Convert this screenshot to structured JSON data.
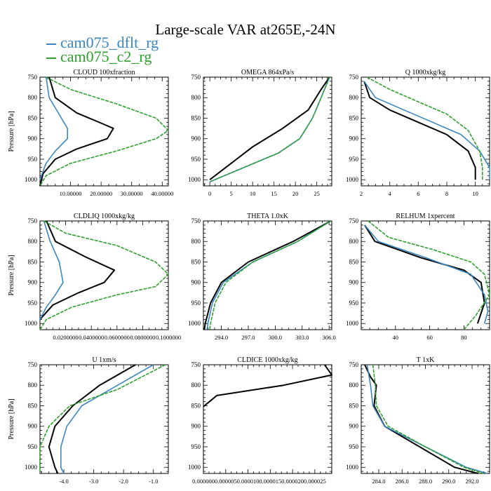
{
  "title": "Large-scale VAR at265E,-24N",
  "legend": [
    {
      "label": "cam075_dflt_rg",
      "color": "#3a86c2"
    },
    {
      "label": "cam075_c2_rg",
      "color": "#2ea12e"
    }
  ],
  "colors": {
    "black": "#000000",
    "blue": "#3a86c2",
    "green": "#2ea12e"
  },
  "chart_data": [
    {
      "type": "line",
      "title": "CLOUD  100xfraction",
      "ylabel": "Pressure [hPa]",
      "xlim": [
        0,
        42
      ],
      "ylim": [
        750,
        1015
      ],
      "xticks": [
        10,
        20,
        30,
        40
      ],
      "xtick_labels": [
        "10.00000",
        "20.00000",
        "30.00000",
        "40.00000"
      ],
      "yticks": [
        750,
        800,
        850,
        900,
        950,
        1000
      ],
      "series": [
        {
          "color": "black",
          "points": [
            [
              3,
              750
            ],
            [
              5,
              800
            ],
            [
              12,
              837
            ],
            [
              20,
              862
            ],
            [
              24,
              875
            ],
            [
              22,
              900
            ],
            [
              12,
              925
            ],
            [
              5,
              950
            ],
            [
              1,
              985
            ],
            [
              0,
              1015
            ]
          ]
        },
        {
          "color": "blue",
          "points": [
            [
              2,
              750
            ],
            [
              3,
              800
            ],
            [
              6,
              837
            ],
            [
              9,
              875
            ],
            [
              9,
              900
            ],
            [
              5,
              930
            ],
            [
              2,
              960
            ],
            [
              0,
              1000
            ]
          ]
        },
        {
          "color": "green",
          "dashed": true,
          "points": [
            [
              2,
              750
            ],
            [
              10,
              780
            ],
            [
              25,
              815
            ],
            [
              38,
              850
            ],
            [
              42,
              880
            ],
            [
              38,
              900
            ],
            [
              25,
              930
            ],
            [
              10,
              960
            ],
            [
              2,
              990
            ],
            [
              0,
              1015
            ]
          ]
        }
      ]
    },
    {
      "type": "line",
      "title": "OMEGA  864xPa/s",
      "xlim": [
        -1.5,
        28.5
      ],
      "ylim": [
        750,
        1015
      ],
      "xticks": [
        0,
        5,
        10,
        15,
        20,
        25
      ],
      "xtick_labels": [
        "0",
        "5",
        "10",
        "15",
        "20",
        "25"
      ],
      "yticks": [
        750,
        800,
        850,
        900,
        950,
        1000
      ],
      "series": [
        {
          "color": "black",
          "points": [
            [
              28,
              750
            ],
            [
              26,
              780
            ],
            [
              23,
              830
            ],
            [
              17,
              875
            ],
            [
              10,
              920
            ],
            [
              5,
              960
            ],
            [
              0,
              1000
            ]
          ]
        },
        {
          "color": "blue",
          "points": [
            [
              28,
              750
            ],
            [
              26,
              800
            ],
            [
              24,
              850
            ],
            [
              21,
              900
            ],
            [
              16,
              935
            ],
            [
              8,
              970
            ],
            [
              0,
              1005
            ]
          ]
        },
        {
          "color": "green",
          "dashed": true,
          "points": [
            [
              28,
              750
            ],
            [
              26,
              800
            ],
            [
              24,
              850
            ],
            [
              21,
              900
            ],
            [
              16,
              935
            ],
            [
              8,
              970
            ],
            [
              0,
              1005
            ]
          ]
        }
      ]
    },
    {
      "type": "line",
      "title": "Q  1000xkg/kg",
      "xlim": [
        2,
        11
      ],
      "ylim": [
        750,
        1015
      ],
      "xticks": [
        2,
        4,
        6,
        8,
        10
      ],
      "xtick_labels": [
        "2",
        "4",
        "6",
        "8",
        "10"
      ],
      "yticks": [
        750,
        800,
        850,
        900,
        950,
        1000
      ],
      "series": [
        {
          "color": "black",
          "points": [
            [
              2.2,
              760
            ],
            [
              2.6,
              800
            ],
            [
              4,
              830
            ],
            [
              6,
              860
            ],
            [
              8,
              890
            ],
            [
              9.5,
              930
            ],
            [
              10,
              970
            ],
            [
              10,
              1000
            ]
          ]
        },
        {
          "color": "blue",
          "points": [
            [
              2.2,
              760
            ],
            [
              3,
              800
            ],
            [
              5,
              830
            ],
            [
              7,
              860
            ],
            [
              9,
              890
            ],
            [
              10.3,
              930
            ],
            [
              11,
              970
            ],
            [
              11,
              1000
            ]
          ]
        },
        {
          "color": "green",
          "dashed": true,
          "points": [
            [
              2.4,
              750
            ],
            [
              4,
              780
            ],
            [
              6,
              810
            ],
            [
              8,
              840
            ],
            [
              9.5,
              880
            ],
            [
              10.3,
              930
            ],
            [
              10.5,
              970
            ],
            [
              10.5,
              1000
            ]
          ]
        }
      ]
    },
    {
      "type": "line",
      "title": "CLDLIQ  1000xkg/kg",
      "ylabel": "Pressure [hPa]",
      "xlim": [
        0,
        0.1
      ],
      "ylim": [
        750,
        1015
      ],
      "xticks": [
        0.02,
        0.04,
        0.06,
        0.08,
        0.1
      ],
      "xtick_labels": [
        "0.0200000",
        "0.0400000",
        "0.0600000",
        "0.0800000",
        "0.1000000"
      ],
      "yticks": [
        750,
        800,
        850,
        900,
        950,
        1000
      ],
      "series": [
        {
          "color": "black",
          "points": [
            [
              0.005,
              750
            ],
            [
              0.012,
              800
            ],
            [
              0.035,
              837
            ],
            [
              0.058,
              870
            ],
            [
              0.05,
              900
            ],
            [
              0.03,
              925
            ],
            [
              0.01,
              955
            ],
            [
              0,
              990
            ]
          ]
        },
        {
          "color": "blue",
          "points": [
            [
              0.003,
              750
            ],
            [
              0.008,
              800
            ],
            [
              0.015,
              850
            ],
            [
              0.018,
              900
            ],
            [
              0.012,
              930
            ],
            [
              0.005,
              960
            ],
            [
              0,
              990
            ]
          ]
        },
        {
          "color": "green",
          "dashed": true,
          "points": [
            [
              0.003,
              750
            ],
            [
              0.02,
              780
            ],
            [
              0.06,
              810
            ],
            [
              0.09,
              850
            ],
            [
              0.1,
              880
            ],
            [
              0.09,
              910
            ],
            [
              0.06,
              930
            ],
            [
              0.025,
              960
            ],
            [
              0.005,
              990
            ],
            [
              0,
              1015
            ]
          ]
        }
      ]
    },
    {
      "type": "line",
      "title": "THETA  1.0xK",
      "xlim": [
        292,
        306.3
      ],
      "ylim": [
        750,
        1015
      ],
      "xticks": [
        294,
        297,
        300,
        303,
        306
      ],
      "xtick_labels": [
        "294.0",
        "297.0",
        "300.0",
        "303.0",
        "306.0"
      ],
      "yticks": [
        750,
        800,
        850,
        900,
        950,
        1000
      ],
      "series": [
        {
          "color": "black",
          "points": [
            [
              306.2,
              750
            ],
            [
              302,
              800
            ],
            [
              297,
              850
            ],
            [
              294,
              900
            ],
            [
              292.8,
              950
            ],
            [
              292.2,
              1000
            ],
            [
              292.1,
              1015
            ]
          ]
        },
        {
          "color": "blue",
          "points": [
            [
              306.2,
              750
            ],
            [
              302.5,
              800
            ],
            [
              297.5,
              850
            ],
            [
              294.2,
              900
            ],
            [
              293,
              950
            ],
            [
              292.5,
              1000
            ],
            [
              292.4,
              1015
            ]
          ]
        },
        {
          "color": "green",
          "dashed": true,
          "points": [
            [
              306.2,
              750
            ],
            [
              302.5,
              800
            ],
            [
              297.5,
              850
            ],
            [
              294.5,
              900
            ],
            [
              293.3,
              950
            ],
            [
              292.8,
              1000
            ],
            [
              292.7,
              1015
            ]
          ]
        }
      ]
    },
    {
      "type": "line",
      "title": "RELHUM  1xpercent",
      "xlim": [
        20,
        95
      ],
      "ylim": [
        750,
        1015
      ],
      "xticks": [
        40,
        60,
        80
      ],
      "xtick_labels": [
        "40",
        "60",
        "80"
      ],
      "yticks": [
        750,
        800,
        850,
        900,
        950,
        1000
      ],
      "series": [
        {
          "color": "black",
          "points": [
            [
              22,
              760
            ],
            [
              28,
              800
            ],
            [
              55,
              840
            ],
            [
              80,
              870
            ],
            [
              90,
              900
            ],
            [
              92,
              950
            ],
            [
              88,
              1000
            ]
          ]
        },
        {
          "color": "blue",
          "points": [
            [
              22,
              760
            ],
            [
              30,
              800
            ],
            [
              58,
              840
            ],
            [
              84,
              880
            ],
            [
              92,
              930
            ],
            [
              94,
              970
            ],
            [
              92,
              1000
            ]
          ]
        },
        {
          "color": "green",
          "dashed": true,
          "points": [
            [
              24,
              750
            ],
            [
              36,
              790
            ],
            [
              62,
              820
            ],
            [
              84,
              850
            ],
            [
              92,
              880
            ],
            [
              95,
              930
            ],
            [
              87,
              980
            ],
            [
              80,
              1015
            ]
          ]
        }
      ]
    },
    {
      "type": "line",
      "title": "U  1xm/s",
      "ylabel": "Pressure [hPa]",
      "xlim": [
        -4.8,
        -0.5
      ],
      "ylim": [
        750,
        1015
      ],
      "xticks": [
        -4,
        -3,
        -2,
        -1
      ],
      "xtick_labels": [
        "-4.0",
        "-3.0",
        "-2.0",
        "-1.0"
      ],
      "yticks": [
        750,
        800,
        850,
        900,
        950,
        1000
      ],
      "series": [
        {
          "color": "black",
          "points": [
            [
              -1.6,
              750
            ],
            [
              -2.8,
              800
            ],
            [
              -3.7,
              850
            ],
            [
              -4.3,
              900
            ],
            [
              -4.5,
              950
            ],
            [
              -4.3,
              1000
            ],
            [
              -4.2,
              1015
            ]
          ]
        },
        {
          "color": "blue",
          "points": [
            [
              -1.0,
              750
            ],
            [
              -2.2,
              800
            ],
            [
              -3.4,
              850
            ],
            [
              -3.9,
              900
            ],
            [
              -4.1,
              950
            ],
            [
              -4.1,
              1000
            ],
            [
              -4.0,
              1015
            ]
          ]
        },
        {
          "color": "green",
          "dashed": true,
          "points": [
            [
              -0.6,
              750
            ],
            [
              -2.2,
              810
            ],
            [
              -3.8,
              850
            ],
            [
              -4.5,
              900
            ],
            [
              -4.8,
              950
            ],
            [
              -4.8,
              1015
            ]
          ]
        }
      ]
    },
    {
      "type": "line",
      "title": "CLDICE  1000xkg/kg",
      "xlim": [
        0,
        2.88e-05
      ],
      "ylim": [
        750,
        1015
      ],
      "xticks": [
        0,
        5e-06,
        1e-05,
        1.5e-05,
        2e-05,
        2.5e-05
      ],
      "xtick_labels": [
        "0.000000",
        "0.000005",
        "0.000010",
        "0.000015",
        "0.000020",
        "0.000025"
      ],
      "yticks": [
        750,
        800,
        850,
        900,
        950,
        1000
      ],
      "series": [
        {
          "color": "black",
          "points": [
            [
              2.72e-05,
              750
            ],
            [
              2.88e-05,
              775
            ],
            [
              1.8e-05,
              800
            ],
            [
              3e-06,
              825
            ],
            [
              0,
              852
            ]
          ]
        },
        {
          "color": "blue",
          "points": []
        },
        {
          "color": "green",
          "dashed": true,
          "points": []
        }
      ]
    },
    {
      "type": "line",
      "title": "T  1xK",
      "xlim": [
        282.5,
        293.5
      ],
      "ylim": [
        750,
        1015
      ],
      "xticks": [
        284,
        286,
        288,
        290,
        292
      ],
      "xtick_labels": [
        "284.0",
        "286.0",
        "288.0",
        "290.0",
        "292.0"
      ],
      "yticks": [
        750,
        800,
        850,
        900,
        950,
        1000
      ],
      "series": [
        {
          "color": "black",
          "points": [
            [
              282.8,
              750
            ],
            [
              283.3,
              780
            ],
            [
              283.8,
              800
            ],
            [
              283.6,
              850
            ],
            [
              284.5,
              900
            ],
            [
              287.5,
              950
            ],
            [
              290.5,
              1000
            ],
            [
              292.5,
              1015
            ]
          ]
        },
        {
          "color": "blue",
          "points": [
            [
              283,
              750
            ],
            [
              283.3,
              800
            ],
            [
              283.5,
              850
            ],
            [
              284.5,
              900
            ],
            [
              288,
              950
            ],
            [
              291.5,
              1000
            ],
            [
              293.3,
              1015
            ]
          ]
        },
        {
          "color": "green",
          "dashed": true,
          "points": [
            [
              283.5,
              750
            ],
            [
              283.7,
              800
            ],
            [
              283.8,
              850
            ],
            [
              284.8,
              900
            ],
            [
              288,
              950
            ],
            [
              291.3,
              1000
            ],
            [
              293,
              1015
            ]
          ]
        }
      ]
    }
  ]
}
